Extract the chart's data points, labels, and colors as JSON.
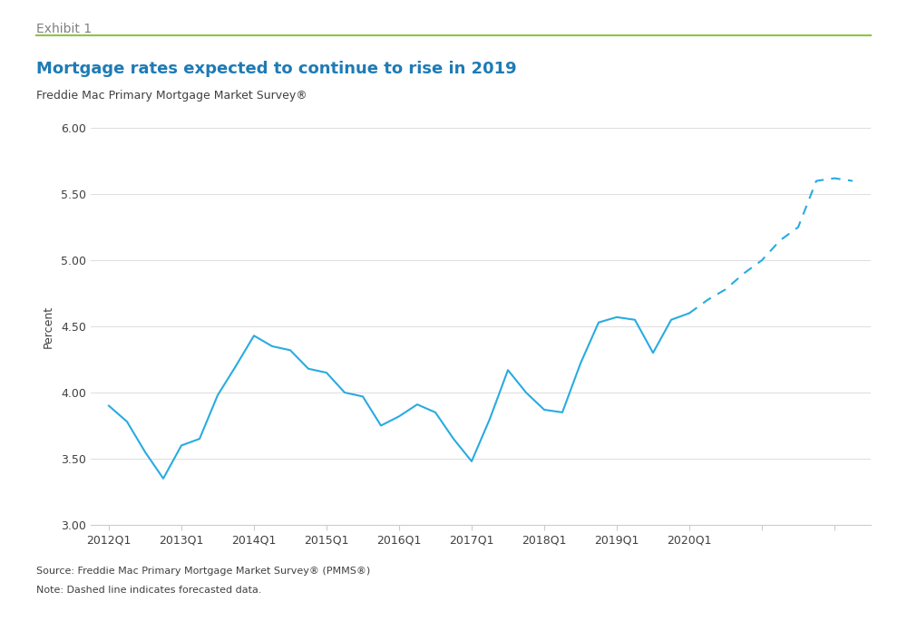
{
  "title": "Mortgage rates expected to continue to rise in 2019",
  "exhibit_label": "Exhibit 1",
  "subtitle": "Freddie Mac Primary Mortgage Market Survey®",
  "ylabel": "Percent",
  "source_text": "Source: Freddie Mac Primary Mortgage Market Survey® (PMMS®)",
  "note_text": "Note: Dashed line indicates forecasted data.",
  "line_color": "#29ABE2",
  "ylim": [
    3.0,
    6.0
  ],
  "yticks": [
    3.0,
    3.5,
    4.0,
    4.5,
    5.0,
    5.5,
    6.0
  ],
  "x_tick_labels": [
    "2012Q1",
    "2013Q1",
    "2014Q1",
    "2015Q1",
    "2016Q1",
    "2017Q1",
    "2018Q1",
    "2019Q1",
    "2020Q1"
  ],
  "solid_x": [
    0,
    1,
    2,
    3,
    4,
    5,
    6,
    7,
    8,
    9,
    10,
    11,
    12,
    13,
    14,
    15,
    16,
    17,
    18,
    19,
    20,
    21,
    22,
    23,
    24,
    25,
    26,
    27,
    28,
    29,
    30,
    31,
    32
  ],
  "solid_y": [
    3.9,
    3.78,
    3.55,
    3.35,
    3.6,
    3.65,
    3.98,
    4.2,
    4.43,
    4.35,
    4.32,
    4.18,
    4.15,
    4.0,
    3.97,
    3.75,
    3.82,
    3.91,
    3.85,
    3.65,
    3.48,
    3.8,
    4.17,
    4.0,
    3.87,
    3.85,
    4.22,
    4.53,
    4.57,
    4.55,
    4.3,
    4.55,
    4.6
  ],
  "dashed_x": [
    32,
    33,
    34,
    35,
    36,
    37,
    38,
    39,
    40,
    41
  ],
  "dashed_y": [
    4.6,
    4.7,
    4.78,
    4.9,
    5.0,
    5.15,
    5.25,
    5.6,
    5.62,
    5.6
  ],
  "background_color": "#ffffff",
  "exhibit_color": "#808080",
  "title_color": "#1E7BB5",
  "subtitle_color": "#404040",
  "header_line_color": "#8DC63F",
  "axes_color": "#404040",
  "grid_color": "#dddddd",
  "spine_color": "#cccccc"
}
